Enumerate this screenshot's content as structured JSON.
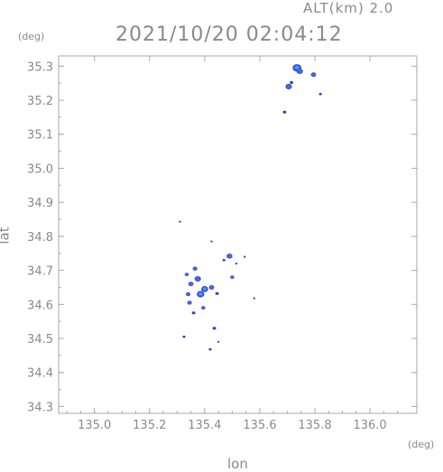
{
  "header": {
    "altitude_label": "ALT(km)  2.0",
    "timestamp": "2021/10/20 02:04:12",
    "y_unit": "(deg)",
    "x_unit": "(deg)"
  },
  "chart_data": {
    "type": "scatter",
    "title": "2021/10/20 02:04:12",
    "subtitle": "ALT(km)  2.0",
    "xlabel": "lon",
    "ylabel": "lat",
    "x_unit": "(deg)",
    "y_unit": "(deg)",
    "xlim": [
      134.87,
      136.17
    ],
    "ylim": [
      34.28,
      35.33
    ],
    "x_ticks": [
      "135.0",
      "135.2",
      "135.4",
      "135.6",
      "135.8",
      "136.0"
    ],
    "y_ticks": [
      "34.3",
      "34.4",
      "34.5",
      "34.6",
      "34.7",
      "34.8",
      "34.9",
      "35.0",
      "35.1",
      "35.2",
      "35.3"
    ],
    "grid": false,
    "colors": {
      "frame": "#aaaaaa",
      "echo_core": "#3fa0f5",
      "echo_mid": "#3f6cf0",
      "echo_edge": "#3a3fc8"
    },
    "series": [
      {
        "points": [
          {
            "lon": 135.735,
            "lat": 35.295,
            "size": 0.03
          },
          {
            "lon": 135.745,
            "lat": 35.285,
            "size": 0.022
          },
          {
            "lon": 135.795,
            "lat": 35.275,
            "size": 0.018
          },
          {
            "lon": 135.705,
            "lat": 35.24,
            "size": 0.022
          },
          {
            "lon": 135.715,
            "lat": 35.252,
            "size": 0.012
          },
          {
            "lon": 135.82,
            "lat": 35.218,
            "size": 0.01
          },
          {
            "lon": 135.69,
            "lat": 35.165,
            "size": 0.012
          },
          {
            "lon": 135.31,
            "lat": 34.843,
            "size": 0.004
          },
          {
            "lon": 135.425,
            "lat": 34.785,
            "size": 0.003
          },
          {
            "lon": 135.49,
            "lat": 34.742,
            "size": 0.02
          },
          {
            "lon": 135.47,
            "lat": 34.73,
            "size": 0.01
          },
          {
            "lon": 135.515,
            "lat": 34.72,
            "size": 0.008
          },
          {
            "lon": 135.545,
            "lat": 34.74,
            "size": 0.005
          },
          {
            "lon": 135.5,
            "lat": 34.68,
            "size": 0.014
          },
          {
            "lon": 135.58,
            "lat": 34.618,
            "size": 0.004
          },
          {
            "lon": 135.365,
            "lat": 34.705,
            "size": 0.016
          },
          {
            "lon": 135.335,
            "lat": 34.688,
            "size": 0.014
          },
          {
            "lon": 135.375,
            "lat": 34.675,
            "size": 0.022
          },
          {
            "lon": 135.35,
            "lat": 34.66,
            "size": 0.018
          },
          {
            "lon": 135.4,
            "lat": 34.645,
            "size": 0.024
          },
          {
            "lon": 135.425,
            "lat": 34.65,
            "size": 0.018
          },
          {
            "lon": 135.385,
            "lat": 34.63,
            "size": 0.026
          },
          {
            "lon": 135.34,
            "lat": 34.63,
            "size": 0.016
          },
          {
            "lon": 135.345,
            "lat": 34.605,
            "size": 0.016
          },
          {
            "lon": 135.395,
            "lat": 34.59,
            "size": 0.014
          },
          {
            "lon": 135.36,
            "lat": 34.575,
            "size": 0.012
          },
          {
            "lon": 135.445,
            "lat": 34.632,
            "size": 0.012
          },
          {
            "lon": 135.325,
            "lat": 34.505,
            "size": 0.01
          },
          {
            "lon": 135.435,
            "lat": 34.53,
            "size": 0.012
          },
          {
            "lon": 135.42,
            "lat": 34.468,
            "size": 0.01
          },
          {
            "lon": 135.45,
            "lat": 34.49,
            "size": 0.004
          }
        ]
      }
    ]
  }
}
